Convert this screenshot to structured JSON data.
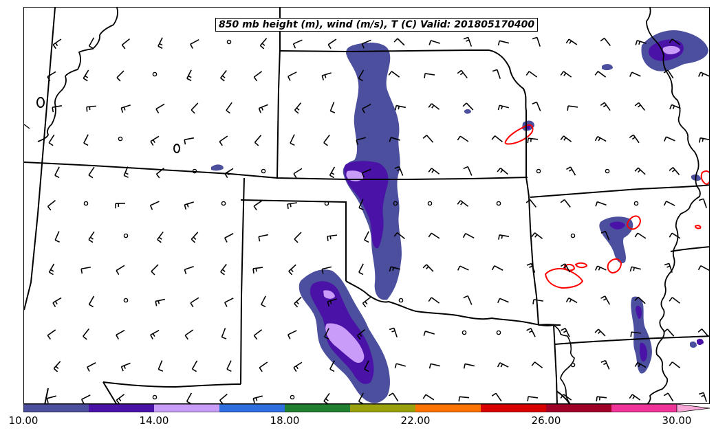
{
  "title": "850 mb height (m), wind (m/s), T (C) Valid: 201805170400",
  "colorbar": {
    "colors": [
      "#4b4f9e",
      "#4b12a8",
      "#c89cf8",
      "#2d6fde",
      "#1f8030",
      "#9aa00e",
      "#ff7400",
      "#d80000",
      "#a00028",
      "#ee3399",
      "#f8a8d8"
    ],
    "tick_labels": [
      "10.00",
      "14.00",
      "18.00",
      "22.00",
      "26.00",
      "30.00"
    ]
  },
  "map": {
    "shading_colors": {
      "low": "#4b4f9e",
      "mid": "#4b12a8",
      "high": "#c89cf8"
    },
    "contour_color": "#ff0000",
    "boundary_color": "#000000"
  }
}
